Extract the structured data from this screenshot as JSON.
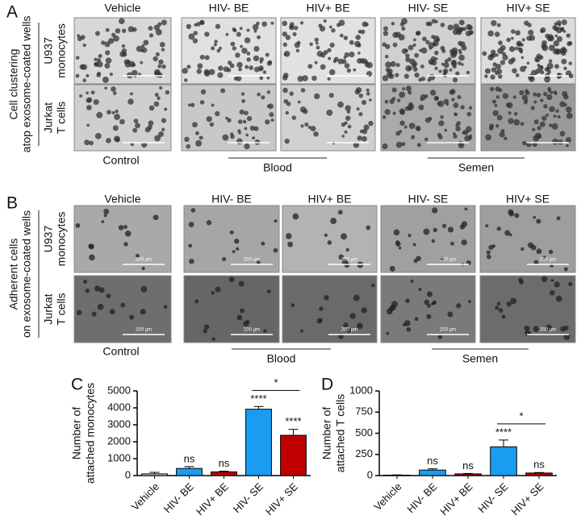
{
  "panels": [
    {
      "label": "A",
      "side_title": [
        "Cell clustering",
        "atop exosome-coated wells"
      ],
      "rows": [
        [
          "U937",
          "monocytes"
        ],
        [
          "Jurkat",
          "T cells"
        ]
      ],
      "columns": [
        "Vehicle",
        "HIV- BE",
        "HIV+ BE",
        "HIV- SE",
        "HIV+ SE"
      ],
      "groups": [
        "Control",
        "Blood",
        "Semen"
      ]
    },
    {
      "label": "B",
      "side_title": [
        "Adherent cells",
        "on exosome-coated wells"
      ],
      "rows": [
        [
          "U937",
          "monocytes"
        ],
        [
          "Jurkat",
          "T cells"
        ]
      ],
      "columns": [
        "Vehicle",
        "HIV- BE",
        "HIV+ BE",
        "HIV- SE",
        "HIV+ SE"
      ],
      "groups": [
        "Control",
        "Blood",
        "Semen"
      ],
      "scale_bar": "200 µm"
    }
  ],
  "chart_data": [
    {
      "type": "bar",
      "label": "C",
      "y_label": [
        "Number of",
        "attached monocytes"
      ],
      "categories": [
        "Vehicle",
        "HIV- BE",
        "HIV+ BE",
        "HIV- SE",
        "HIV+ SE"
      ],
      "values": [
        100,
        420,
        220,
        3920,
        2380
      ],
      "errors": [
        90,
        110,
        40,
        160,
        350
      ],
      "colors": [
        "#d9d9d9",
        "#1a9cf0",
        "#c00000",
        "#1a9cf0",
        "#c00000"
      ],
      "annotations": [
        null,
        "ns",
        "ns",
        "****",
        "****"
      ],
      "bracket": {
        "categories": [
          "HIV- SE",
          "HIV+ SE"
        ],
        "label": "*"
      },
      "ylim": [
        0,
        5000
      ],
      "yticks": [
        0,
        1000,
        2000,
        3000,
        4000,
        5000
      ]
    },
    {
      "type": "bar",
      "label": "D",
      "y_label": [
        "Number of",
        "attached T cells"
      ],
      "categories": [
        "Vehicle",
        "HIV- BE",
        "HIV+ BE",
        "HIV- SE",
        "HIV+ SE"
      ],
      "values": [
        5,
        65,
        20,
        340,
        30
      ],
      "errors": [
        3,
        15,
        5,
        80,
        6
      ],
      "colors": [
        "#d9d9d9",
        "#1a9cf0",
        "#c00000",
        "#1a9cf0",
        "#c00000"
      ],
      "annotations": [
        null,
        "ns",
        "ns",
        "****",
        "ns"
      ],
      "bracket": {
        "categories": [
          "HIV- SE",
          "HIV+ SE"
        ],
        "label": "*"
      },
      "ylim": [
        0,
        1000
      ],
      "yticks": [
        0,
        250,
        500,
        750,
        1000
      ]
    }
  ]
}
